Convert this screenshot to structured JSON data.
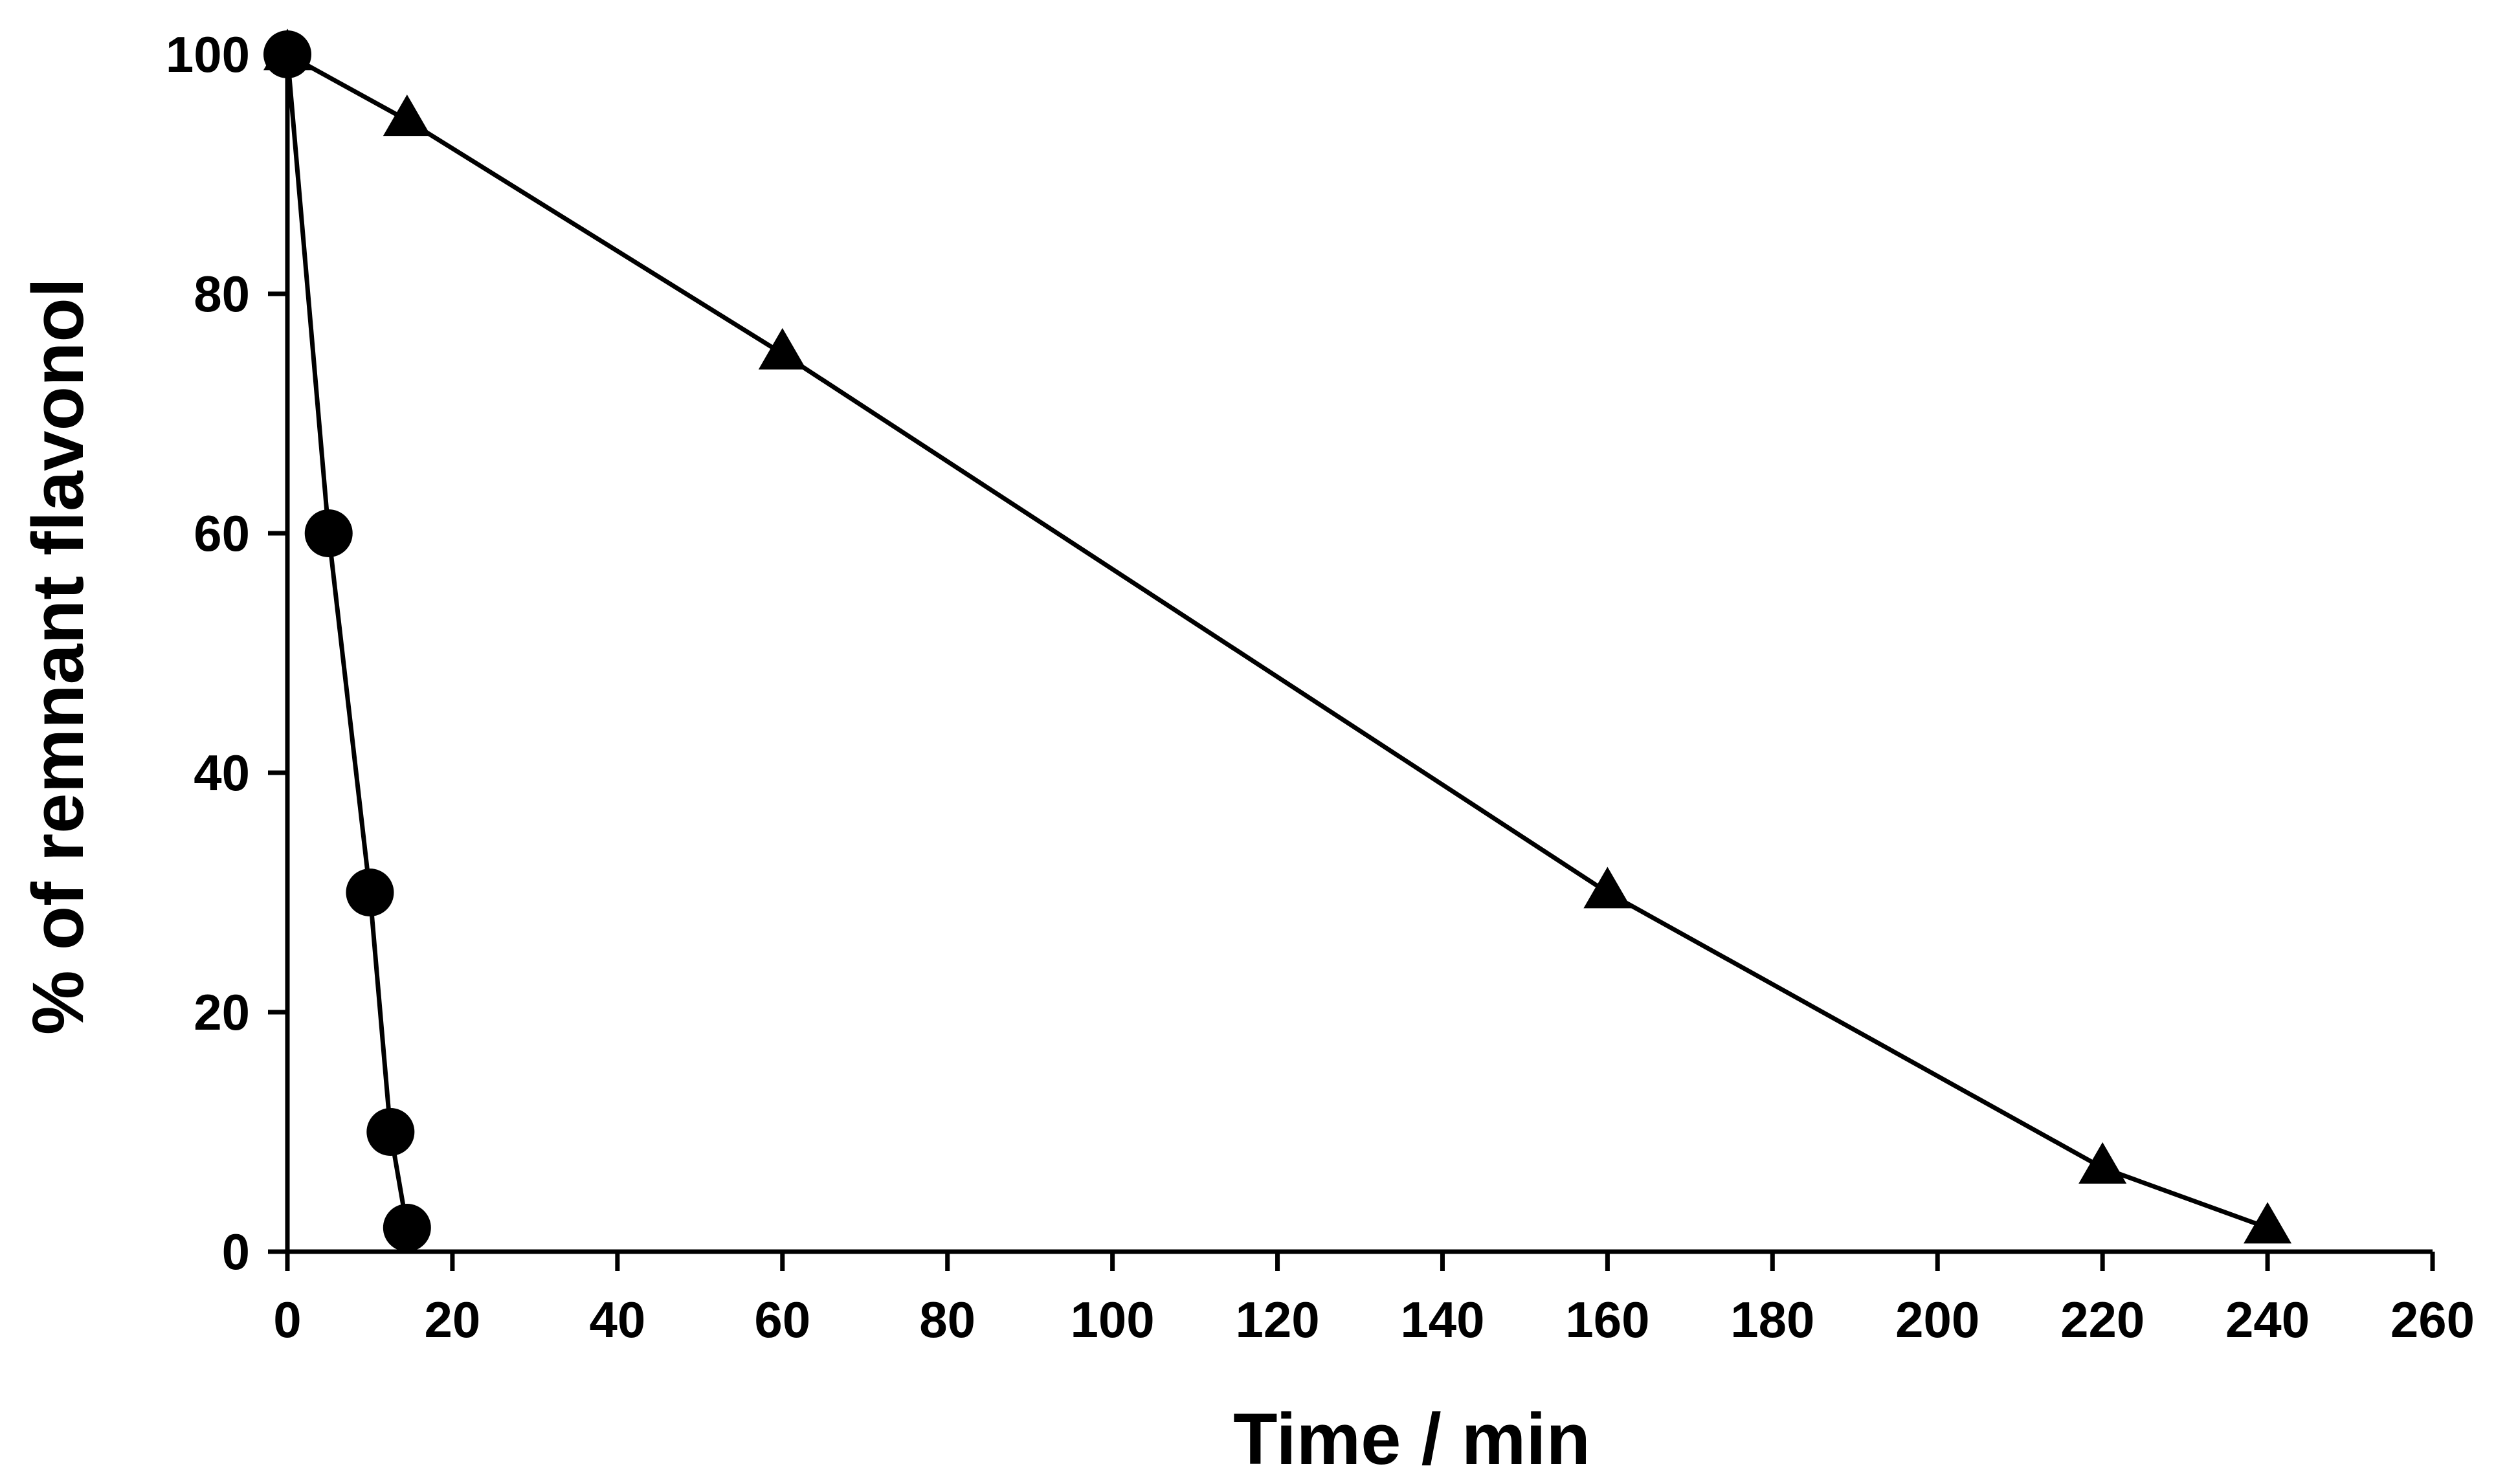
{
  "chart_data": {
    "type": "line",
    "title": "",
    "xlabel": "Time / min",
    "ylabel": "% of remnant flavonol",
    "xlim": [
      0,
      260
    ],
    "ylim": [
      0,
      100
    ],
    "x_ticks": [
      0,
      20,
      40,
      60,
      80,
      100,
      120,
      140,
      160,
      180,
      200,
      220,
      240,
      260
    ],
    "y_ticks": [
      0,
      20,
      40,
      60,
      80,
      100
    ],
    "x_tick_labels": [
      "0",
      "20",
      "40",
      "60",
      "80",
      "100",
      "120",
      "140",
      "160",
      "180",
      "200",
      "220",
      "240",
      "260"
    ],
    "y_tick_labels": [
      "0",
      "20",
      "40",
      "60",
      "80",
      "100"
    ],
    "grid": false,
    "legend": "none",
    "series": [
      {
        "marker": "circle",
        "color": "#000000",
        "x": [
          0,
          5,
          10,
          12.5,
          14.5
        ],
        "y": [
          100,
          60,
          30,
          10,
          2
        ]
      },
      {
        "marker": "triangle",
        "color": "#000000",
        "x": [
          0,
          14.5,
          60,
          160,
          220,
          240
        ],
        "y": [
          100,
          94.5,
          75,
          30,
          7,
          2
        ]
      }
    ]
  }
}
